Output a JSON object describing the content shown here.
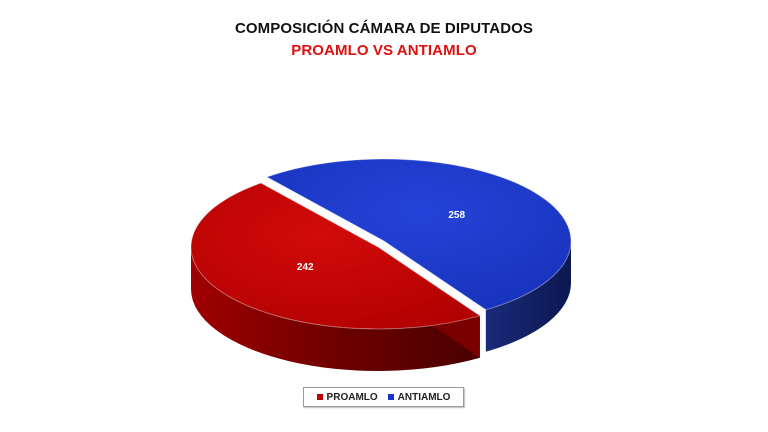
{
  "title": "COMPOSICIÓN CÁMARA DE DIPUTADOS",
  "subtitle": "PROAMLO VS ANTIAMLO",
  "chart_data": {
    "type": "pie",
    "title": "COMPOSICIÓN CÁMARA DE DIPUTADOS",
    "subtitle": "PROAMLO VS ANTIAMLO",
    "three_d": true,
    "legend_position": "bottom",
    "slices": [
      {
        "name": "PROAMLO",
        "value": 242,
        "color": "#c00000"
      },
      {
        "name": "ANTIAMLO",
        "value": 258,
        "color": "#1a36c8"
      }
    ]
  },
  "legend": [
    {
      "label": "PROAMLO",
      "color": "#c00000"
    },
    {
      "label": "ANTIAMLO",
      "color": "#1a36c8"
    }
  ]
}
